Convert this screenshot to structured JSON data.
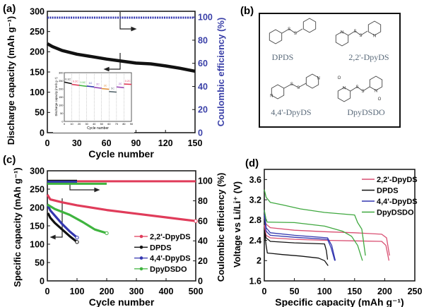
{
  "panel_labels": [
    "(a)",
    "(b)",
    "(c)",
    "(d)"
  ],
  "colors": {
    "red": "#e03c5a",
    "pink": "#d94f72",
    "black": "#111111",
    "blue": "#3437b0",
    "green": "#3fb43f",
    "axis_blue": "#3a40a8"
  },
  "panel_b": {
    "molecules": [
      "DPDS",
      "2,2'-DpyDS",
      "4,4'-DpyDS",
      "DpyDSDO"
    ],
    "atoms": {
      "S": "S",
      "N": "N",
      "O": "O"
    }
  },
  "chart_data": [
    {
      "id": "a",
      "type": "line",
      "xlabel": "Cycle number",
      "ylabel": "Discharge capacity (mAh g⁻¹)",
      "y2label": "Coulombic efficiency (%)",
      "xlim": [
        0,
        150
      ],
      "ylim": [
        0,
        300
      ],
      "y2lim": [
        0,
        105
      ],
      "xticks": [
        0,
        30,
        60,
        90,
        120,
        150
      ],
      "yticks": [
        0,
        50,
        100,
        150,
        200,
        250,
        300
      ],
      "y2ticks": [
        0,
        20,
        40,
        60,
        80,
        100
      ],
      "series": [
        {
          "axis": "left",
          "color": "#111111",
          "x": [
            0,
            5,
            15,
            30,
            45,
            60,
            75,
            90,
            105,
            120,
            135,
            150
          ],
          "y": [
            220,
            213,
            203,
            194,
            188,
            182,
            177,
            172,
            170,
            165,
            159,
            152
          ]
        },
        {
          "axis": "right",
          "color": "#3437b0",
          "x": [
            0,
            150
          ],
          "y": [
            99.5,
            99.5
          ]
        }
      ],
      "inset": {
        "xlabel": "Cycle number",
        "ylabel": "Discharge capacity (mAh g⁻¹)",
        "xlim": [
          0,
          90
        ],
        "ylim": [
          0,
          300
        ],
        "xticks": [
          0,
          10,
          20,
          30,
          40,
          50,
          60,
          70,
          80,
          90
        ],
        "yticks": [
          0,
          50,
          100,
          150,
          200,
          250,
          300
        ],
        "segments": [
          {
            "rate": "0.1C",
            "color": "#111111",
            "x": [
              0,
              10
            ],
            "y": [
              242,
              232
            ]
          },
          {
            "rate": "0.2C",
            "color": "#e03c5a",
            "x": [
              10,
              20
            ],
            "y": [
              228,
              222
            ]
          },
          {
            "rate": "0.5C",
            "color": "#3fb43f",
            "x": [
              20,
              30
            ],
            "y": [
              222,
              216
            ]
          },
          {
            "rate": "1C",
            "color": "#3437b0",
            "x": [
              30,
              40
            ],
            "y": [
              218,
              212
            ]
          },
          {
            "rate": "2C",
            "color": "#9a4ab8",
            "x": [
              40,
              50
            ],
            "y": [
              210,
              204
            ]
          },
          {
            "rate": "3C",
            "color": "#e08a30",
            "x": [
              50,
              60
            ],
            "y": [
              202,
              198
            ]
          },
          {
            "rate": "5C",
            "color": "#5a6a70",
            "x": [
              60,
              70
            ],
            "y": [
              184,
              180
            ]
          },
          {
            "rate": "2C",
            "color": "#9a4ab8",
            "x": [
              70,
              80
            ],
            "y": [
              212,
              208
            ]
          },
          {
            "rate": "0.2C",
            "color": "#e03c5a",
            "x": [
              80,
              90
            ],
            "y": [
              230,
              228
            ]
          }
        ]
      }
    },
    {
      "id": "c",
      "type": "line",
      "xlabel": "Cycle number",
      "ylabel": "Specific capacity (mAh g⁻¹)",
      "y2label": "Coulombic efficiency (%)",
      "xlim": [
        0,
        500
      ],
      "ylim": [
        0,
        300
      ],
      "y2lim": [
        0,
        110
      ],
      "xticks": [
        0,
        100,
        200,
        300,
        400,
        500
      ],
      "yticks": [
        0,
        50,
        100,
        150,
        200,
        250,
        300
      ],
      "y2ticks": [
        0,
        20,
        40,
        60,
        80,
        100
      ],
      "legend": "center-right",
      "series": [
        {
          "name": "2,2'-DpyDS",
          "color": "#e03c5a",
          "x": [
            0,
            10,
            50,
            100,
            200,
            300,
            400,
            500
          ],
          "y": [
            235,
            222,
            214,
            206,
            193,
            183,
            173,
            163
          ],
          "ce_x": [
            0,
            500
          ],
          "ce_y": [
            99.5,
            99.5
          ]
        },
        {
          "name": "DPDS",
          "color": "#111111",
          "x": [
            2,
            10,
            25,
            50,
            75,
            100
          ],
          "y": [
            185,
            172,
            158,
            140,
            122,
            106
          ],
          "ce_x": [
            0,
            100
          ],
          "ce_y": [
            100,
            100
          ]
        },
        {
          "name": "4,4'-DpyDS",
          "color": "#3437b0",
          "x": [
            2,
            10,
            25,
            50,
            75,
            100
          ],
          "y": [
            205,
            192,
            178,
            155,
            135,
            118
          ],
          "ce_x": [
            0,
            100
          ],
          "ce_y": [
            99,
            99
          ]
        },
        {
          "name": "DpyDSDO",
          "color": "#3fb43f",
          "x": [
            0,
            25,
            75,
            120,
            160,
            200
          ],
          "y": [
            208,
            196,
            180,
            160,
            140,
            130
          ],
          "ce_x": [
            0,
            200
          ],
          "ce_y": [
            97,
            97
          ]
        }
      ]
    },
    {
      "id": "d",
      "type": "line",
      "xlabel": "Specific capacity (mAh g⁻¹)",
      "ylabel": "Voltage vs Li/Li⁺ (V)",
      "xlim": [
        0,
        250
      ],
      "ylim": [
        1.6,
        3.8
      ],
      "xticks": [
        0,
        50,
        100,
        150,
        200,
        250
      ],
      "yticks": [
        1.6,
        2.0,
        2.4,
        2.8,
        3.2,
        3.6
      ],
      "legend": "top-right",
      "series": [
        {
          "name": "2,2'-DpyDS",
          "color": "#d94f72",
          "curves": [
            {
              "x": [
                0,
                3,
                10,
                50,
                100,
                150,
                195,
                203,
                208
              ],
              "y": [
                2.85,
                2.72,
                2.65,
                2.6,
                2.57,
                2.55,
                2.52,
                2.45,
                2.1
              ]
            },
            {
              "x": [
                0,
                3,
                10,
                50,
                100,
                150,
                195,
                202,
                207
              ],
              "y": [
                2.7,
                2.5,
                2.45,
                2.42,
                2.4,
                2.39,
                2.38,
                2.3,
                2.0
              ]
            }
          ]
        },
        {
          "name": "DPDS",
          "color": "#111111",
          "curves": [
            {
              "x": [
                0,
                3,
                10,
                50,
                100,
                103,
                105
              ],
              "y": [
                2.6,
                2.45,
                2.38,
                2.35,
                2.33,
                2.2,
                2.02
              ]
            },
            {
              "x": [
                0,
                3,
                5,
                30,
                60,
                90,
                100,
                106
              ],
              "y": [
                2.6,
                2.3,
                2.15,
                2.12,
                2.09,
                2.05,
                2.0,
                1.9
              ]
            }
          ]
        },
        {
          "name": "4,4'-DpyDS",
          "color": "#3437b0",
          "curves": [
            {
              "x": [
                0,
                3,
                10,
                50,
                105,
                112,
                118
              ],
              "y": [
                3.0,
                2.65,
                2.55,
                2.5,
                2.45,
                2.3,
                2.0
              ]
            },
            {
              "x": [
                0,
                3,
                10,
                50,
                105,
                111,
                117
              ],
              "y": [
                2.9,
                2.58,
                2.5,
                2.46,
                2.42,
                2.25,
                2.0
              ]
            }
          ]
        },
        {
          "name": "DpyDSDO",
          "color": "#3fa83f",
          "curves": [
            {
              "x": [
                0,
                3,
                10,
                30,
                60,
                100,
                150,
                155,
                162,
                168
              ],
              "y": [
                3.4,
                3.25,
                3.15,
                3.1,
                3.02,
                2.95,
                2.9,
                2.75,
                2.62,
                2.1
              ]
            },
            {
              "x": [
                0,
                3,
                5,
                50,
                100,
                130,
                145,
                155,
                163
              ],
              "y": [
                3.0,
                2.8,
                2.76,
                2.75,
                2.68,
                2.58,
                2.48,
                2.3,
                2.0
              ]
            }
          ]
        }
      ]
    }
  ]
}
